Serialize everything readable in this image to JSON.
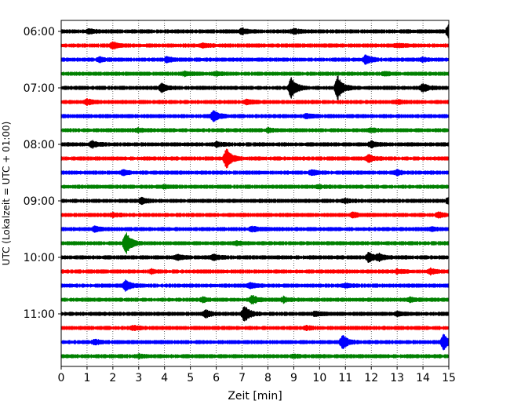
{
  "chart_data": {
    "type": "line",
    "title": "",
    "xlabel": "Zeit  [min]",
    "ylabel": "UTC (Lokalzeit = UTC + 01:00)",
    "xlim": [
      0,
      15
    ],
    "xticks": [
      0,
      1,
      2,
      3,
      4,
      5,
      6,
      7,
      8,
      9,
      10,
      11,
      12,
      13,
      14,
      15
    ],
    "grid": "vertical dotted",
    "legend": "none",
    "trace_interval_min": 15,
    "trace_colors": [
      "#000000",
      "#ff0000",
      "#0000ff",
      "#008000"
    ],
    "hour_labels": [
      {
        "label": "06:00",
        "trace": 0
      },
      {
        "label": "07:00",
        "trace": 4
      },
      {
        "label": "08:00",
        "trace": 8
      },
      {
        "label": "09:00",
        "trace": 12
      },
      {
        "label": "10:00",
        "trace": 16
      },
      {
        "label": "11:00",
        "trace": 20
      }
    ],
    "traces": [
      {
        "start": "06:00",
        "events": [
          [
            1.1,
            0.25
          ],
          [
            7.0,
            0.35
          ],
          [
            9.0,
            0.3
          ],
          [
            15.0,
            0.8
          ]
        ]
      },
      {
        "start": "06:15",
        "events": [
          [
            2.0,
            0.4
          ],
          [
            5.5,
            0.2
          ],
          [
            13.0,
            0.2
          ]
        ]
      },
      {
        "start": "06:30",
        "events": [
          [
            1.5,
            0.25
          ],
          [
            4.1,
            0.3
          ],
          [
            11.8,
            0.6
          ],
          [
            14.0,
            0.2
          ]
        ]
      },
      {
        "start": "06:45",
        "events": [
          [
            4.8,
            0.25
          ],
          [
            6.0,
            0.2
          ],
          [
            12.5,
            0.2
          ]
        ]
      },
      {
        "start": "07:00",
        "events": [
          [
            3.9,
            0.5
          ],
          [
            8.9,
            1.4
          ],
          [
            10.7,
            1.6
          ],
          [
            14.0,
            0.5
          ]
        ]
      },
      {
        "start": "07:15",
        "events": [
          [
            1.0,
            0.3
          ],
          [
            7.2,
            0.25
          ],
          [
            13.0,
            0.2
          ]
        ]
      },
      {
        "start": "07:30",
        "events": [
          [
            5.9,
            0.7
          ],
          [
            9.5,
            0.25
          ]
        ]
      },
      {
        "start": "07:45",
        "events": [
          [
            3.0,
            0.2
          ],
          [
            8.0,
            0.2
          ],
          [
            12.0,
            0.2
          ]
        ]
      },
      {
        "start": "08:00",
        "events": [
          [
            1.2,
            0.4
          ],
          [
            6.0,
            0.25
          ],
          [
            12.0,
            0.35
          ]
        ]
      },
      {
        "start": "08:15",
        "events": [
          [
            6.4,
            1.3
          ],
          [
            11.9,
            0.5
          ]
        ]
      },
      {
        "start": "08:30",
        "events": [
          [
            2.4,
            0.3
          ],
          [
            9.7,
            0.3
          ],
          [
            13.0,
            0.25
          ]
        ]
      },
      {
        "start": "08:45",
        "events": [
          [
            4.0,
            0.15
          ],
          [
            10.0,
            0.15
          ]
        ]
      },
      {
        "start": "09:00",
        "events": [
          [
            3.1,
            0.4
          ],
          [
            11.0,
            0.2
          ],
          [
            15.0,
            0.4
          ]
        ]
      },
      {
        "start": "09:15",
        "events": [
          [
            2.0,
            0.2
          ],
          [
            11.3,
            0.3
          ],
          [
            14.6,
            0.3
          ]
        ]
      },
      {
        "start": "09:30",
        "events": [
          [
            1.3,
            0.3
          ],
          [
            7.4,
            0.3
          ],
          [
            14.3,
            0.2
          ]
        ]
      },
      {
        "start": "09:45",
        "events": [
          [
            2.5,
            1.5
          ],
          [
            6.8,
            0.2
          ]
        ]
      },
      {
        "start": "10:00",
        "events": [
          [
            4.5,
            0.3
          ],
          [
            5.9,
            0.35
          ],
          [
            11.9,
            0.6
          ],
          [
            12.3,
            0.4
          ]
        ]
      },
      {
        "start": "10:15",
        "events": [
          [
            3.5,
            0.2
          ],
          [
            13.0,
            0.2
          ],
          [
            14.3,
            0.3
          ]
        ]
      },
      {
        "start": "10:30",
        "events": [
          [
            2.5,
            0.7
          ],
          [
            7.3,
            0.3
          ],
          [
            11.0,
            0.2
          ]
        ]
      },
      {
        "start": "10:45",
        "events": [
          [
            5.5,
            0.25
          ],
          [
            7.4,
            0.5
          ],
          [
            8.6,
            0.3
          ],
          [
            13.5,
            0.2
          ]
        ]
      },
      {
        "start": "11:00",
        "events": [
          [
            5.6,
            0.4
          ],
          [
            7.1,
            1.1
          ],
          [
            9.8,
            0.25
          ],
          [
            13.0,
            0.2
          ]
        ]
      },
      {
        "start": "11:15",
        "events": [
          [
            2.8,
            0.2
          ],
          [
            9.5,
            0.2
          ]
        ]
      },
      {
        "start": "11:30",
        "events": [
          [
            1.3,
            0.25
          ],
          [
            10.9,
            0.9
          ],
          [
            14.8,
            1.0
          ]
        ]
      },
      {
        "start": "11:45",
        "events": [
          [
            3.0,
            0.15
          ],
          [
            9.0,
            0.15
          ]
        ]
      }
    ]
  }
}
